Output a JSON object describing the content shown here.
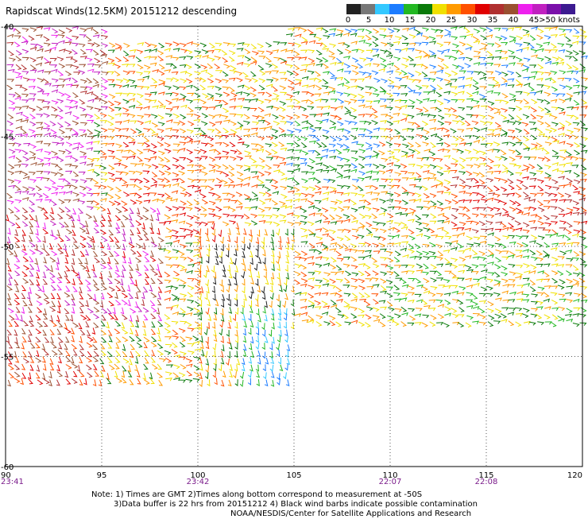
{
  "title": "Rapidscat Winds(12.5KM) 20151212 descending",
  "legend": {
    "colors": [
      "#222222",
      "#777777",
      "#33c8ff",
      "#1c7cff",
      "#22b822",
      "#0a7a0a",
      "#f0e000",
      "#ff9a00",
      "#ff5000",
      "#e00000",
      "#b03030",
      "#9a5030",
      "#ee20ee",
      "#c020c0",
      "#7a10aa",
      "#3c1a90"
    ],
    "labels": [
      "0",
      "5",
      "10",
      "15",
      "20",
      "25",
      "30",
      "35",
      "40",
      "45",
      ">50 knots"
    ]
  },
  "axes": {
    "lon_ticks": [
      "90",
      "95",
      "100",
      "105",
      "110",
      "115",
      "120"
    ],
    "lat_ticks": [
      "-40",
      "-45",
      "-50",
      "-55",
      "-60"
    ],
    "times": [
      {
        "lon": 90,
        "label": "23:41"
      },
      {
        "lon": 100,
        "label": "23:42"
      },
      {
        "lon": 110,
        "label": "22:07"
      },
      {
        "lon": 115,
        "label": "22:08"
      }
    ],
    "lon_range": [
      90,
      120
    ],
    "lat_range": [
      -40,
      -60
    ]
  },
  "notes": {
    "line1": "Note: 1) Times are GMT 2)Times along bottom correspond to measurement at -50S",
    "line2": "3)Data buffer is 22 hrs from 20151212 4) Black wind barbs indicate possible contamination",
    "line3": "NOAA/NESDIS/Center for Satellite Applications and Research"
  }
}
